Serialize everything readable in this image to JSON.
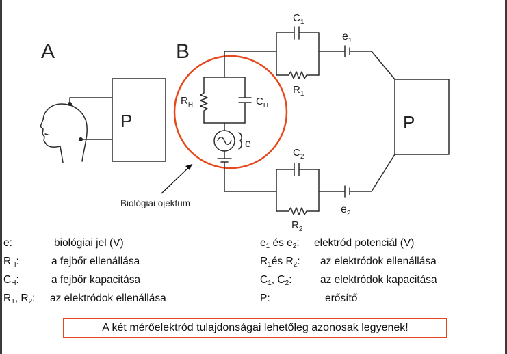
{
  "diagram": {
    "panel_a": {
      "label": "A",
      "amplifier": "P"
    },
    "panel_b": {
      "label": "B",
      "amplifier": "P",
      "r_h": {
        "main": "R",
        "sub": "H"
      },
      "c_h": {
        "main": "C",
        "sub": "H"
      },
      "source": "e",
      "c1": {
        "main": "C",
        "sub": "1"
      },
      "r1": {
        "main": "R",
        "sub": "1"
      },
      "e1": {
        "main": "e",
        "sub": "1"
      },
      "c2": {
        "main": "C",
        "sub": "2"
      },
      "r2": {
        "main": "R",
        "sub": "2"
      },
      "e2": {
        "main": "e",
        "sub": "2"
      },
      "callout": "Biológiai ojektum",
      "highlight_color": "#e8461b"
    }
  },
  "legend_left": [
    {
      "k_main": "e:",
      "k_sub": "",
      "k_rest": "",
      "value": "biológiai jel (V)"
    },
    {
      "k_main": "R",
      "k_sub": "H",
      "k_rest": ":",
      "value": "a fejbőr ellenállása"
    },
    {
      "k_main": "C",
      "k_sub": "H",
      "k_rest": ":",
      "value": "a fejbőr kapacitása"
    },
    {
      "k_main": "R",
      "k_sub": "1",
      "k_rest": ", R",
      "k_sub2": "2",
      "k_rest2": ":",
      "value": "az elektródok ellenállása"
    }
  ],
  "legend_right": [
    {
      "k_main": "e",
      "k_sub": "1",
      "k_rest": " és e",
      "k_sub2": "2",
      "k_rest2": ":",
      "value": "elektród potenciál (V)"
    },
    {
      "k_main": "R",
      "k_sub": "1",
      "k_rest": "és R",
      "k_sub2": "2",
      "k_rest2": ":",
      "value": "az elektródok ellenállása"
    },
    {
      "k_main": "C",
      "k_sub": "1",
      "k_rest": ", C",
      "k_sub2": "2",
      "k_rest2": ":",
      "value": "az elektródok kapacitása"
    },
    {
      "k_main": "P:",
      "k_sub": "",
      "k_rest": "",
      "value": "erősítő"
    }
  ],
  "note": "A két mérőelektród tulajdonságai lehetőleg azonosak legyenek!"
}
